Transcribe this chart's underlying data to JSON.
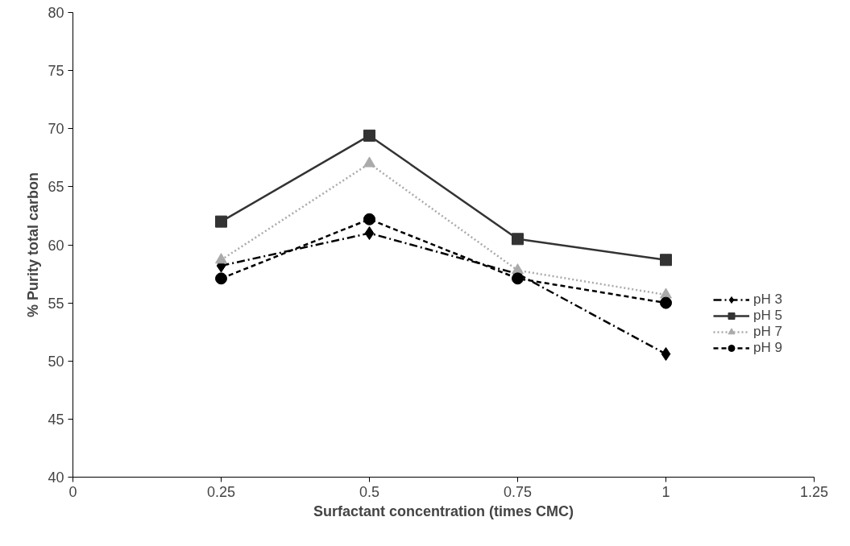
{
  "chart_data": {
    "type": "line",
    "xlabel": "Surfactant concentration (times CMC)",
    "ylabel": "% Purity total carbon",
    "x": [
      0.25,
      0.5,
      0.75,
      1
    ],
    "series": [
      {
        "name": "pH 3",
        "color": "#000000",
        "marker": "diamond",
        "line_style": "dashdot",
        "values": [
          58.2,
          61.0,
          57.5,
          50.6
        ]
      },
      {
        "name": "pH 5",
        "color": "#333333",
        "marker": "square",
        "line_style": "solid",
        "values": [
          62.0,
          69.4,
          60.5,
          58.7
        ]
      },
      {
        "name": "pH 7",
        "color": "#aaaaaa",
        "marker": "triangle",
        "line_style": "dotted",
        "values": [
          58.7,
          67.0,
          57.8,
          55.7
        ]
      },
      {
        "name": "pH 9",
        "color": "#000000",
        "marker": "circle",
        "line_style": "dashed",
        "values": [
          57.1,
          62.2,
          57.1,
          55.0
        ]
      }
    ],
    "xlim": [
      0,
      1.25
    ],
    "xticks": [
      0,
      0.25,
      0.5,
      0.75,
      1,
      1.25
    ],
    "ylim": [
      40,
      80
    ],
    "yticks": [
      40,
      45,
      50,
      55,
      60,
      65,
      70,
      75,
      80
    ],
    "grid": false,
    "legend": "right"
  }
}
